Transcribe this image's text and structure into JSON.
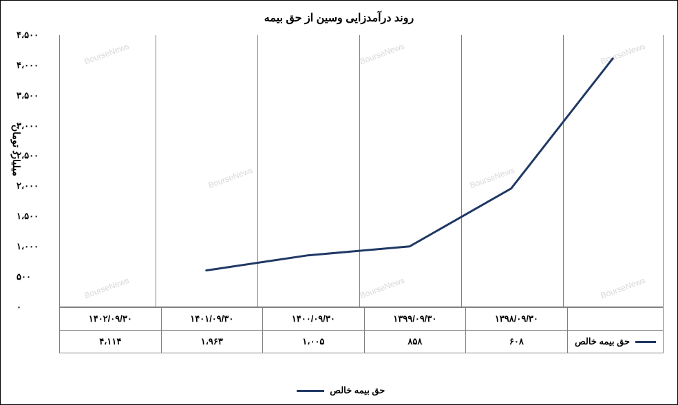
{
  "chart": {
    "type": "line",
    "title": "روند درآمدزایی وسین از حق بیمه",
    "title_fontsize": 16,
    "y_axis_label": "میلیارد تومان",
    "label_fontsize": 14,
    "background_color": "#ffffff",
    "grid_color": "#808080",
    "text_color": "#000000",
    "line_color": "#1f3864",
    "line_width": 3,
    "ylim": [
      0,
      4500
    ],
    "ytick_step": 500,
    "y_ticks": [
      "۰",
      "۵۰۰",
      "۱،۰۰۰",
      "۱،۵۰۰",
      "۲،۰۰۰",
      "۲،۵۰۰",
      "۳،۰۰۰",
      "۳،۵۰۰",
      "۴،۰۰۰",
      "۴،۵۰۰"
    ],
    "categories": [
      "۱۳۹۸/۰۹/۳۰",
      "۱۳۹۹/۰۹/۳۰",
      "۱۴۰۰/۰۹/۳۰",
      "۱۴۰۱/۰۹/۳۰",
      "۱۴۰۲/۰۹/۳۰"
    ],
    "series_name": "حق بیمه خالص",
    "values": [
      608,
      858,
      1005,
      1963,
      4114
    ],
    "values_display": [
      "۶۰۸",
      "۸۵۸",
      "۱،۰۰۵",
      "۱،۹۶۳",
      "۴،۱۱۴"
    ],
    "watermark_text": "BourseNews",
    "watermark_color": "#d9d9d9"
  }
}
